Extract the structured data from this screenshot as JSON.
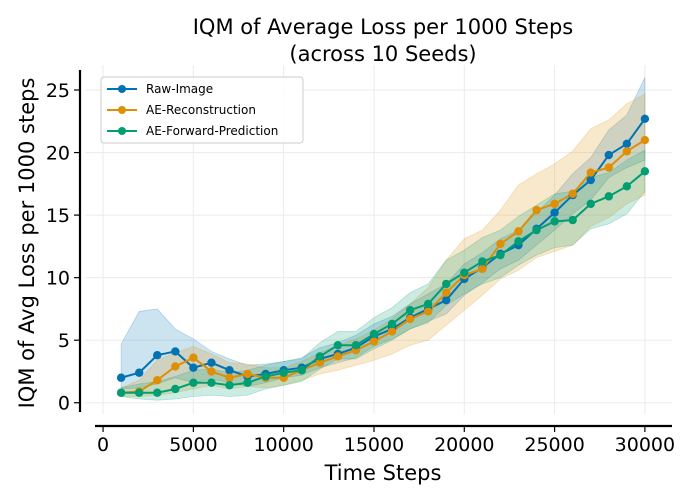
{
  "chart_data": {
    "type": "line",
    "title": "IQM of Average Loss per 1000 Steps",
    "subtitle": "(across 10 Seeds)",
    "xlabel": "Time Steps",
    "ylabel": "IQM of Avg Loss per 1000 steps",
    "xlim": [
      -1000,
      31500
    ],
    "ylim": [
      -0.9,
      27
    ],
    "x_ticks": [
      0,
      5000,
      10000,
      15000,
      20000,
      25000,
      30000
    ],
    "x_tick_labels": [
      "0",
      "5000",
      "10000",
      "15000",
      "20000",
      "25000",
      "30000"
    ],
    "y_ticks": [
      0,
      5,
      10,
      15,
      20,
      25
    ],
    "y_tick_labels": [
      "0",
      "5",
      "10",
      "15",
      "20",
      "25"
    ],
    "grid": true,
    "legend_position": "top-left",
    "x": [
      1000,
      2000,
      3000,
      4000,
      5000,
      6000,
      7000,
      8000,
      9000,
      10000,
      11000,
      12000,
      13000,
      14000,
      15000,
      16000,
      17000,
      18000,
      19000,
      20000,
      21000,
      22000,
      23000,
      24000,
      25000,
      26000,
      27000,
      28000,
      29000,
      30000
    ],
    "series": [
      {
        "name": "Raw-Image",
        "color": "#0173b2",
        "values": [
          2.0,
          2.4,
          3.8,
          4.1,
          2.8,
          3.2,
          2.6,
          2.1,
          2.3,
          2.6,
          2.8,
          3.5,
          3.9,
          4.4,
          5.3,
          5.9,
          6.8,
          7.5,
          8.2,
          9.9,
          10.8,
          11.9,
          12.6,
          13.9,
          15.2,
          16.6,
          17.8,
          19.8,
          20.7,
          22.7
        ],
        "band_lower": [
          1.1,
          1.2,
          1.5,
          2.0,
          1.6,
          1.9,
          1.6,
          1.3,
          1.6,
          2.0,
          2.2,
          2.8,
          3.2,
          3.6,
          4.5,
          5.1,
          5.9,
          6.5,
          7.1,
          8.6,
          9.6,
          10.7,
          11.4,
          12.6,
          13.8,
          15.1,
          16.2,
          18.0,
          18.8,
          19.4
        ],
        "band_upper": [
          4.7,
          7.3,
          7.5,
          5.9,
          5.1,
          4.1,
          3.5,
          3.0,
          3.1,
          3.3,
          3.6,
          4.4,
          4.8,
          5.4,
          6.3,
          6.9,
          7.9,
          8.7,
          9.5,
          11.1,
          12.0,
          13.1,
          13.8,
          15.2,
          16.6,
          18.3,
          19.6,
          21.8,
          23.0,
          26.0
        ]
      },
      {
        "name": "AE-Reconstruction",
        "color": "#de8f05",
        "values": [
          0.8,
          0.9,
          1.8,
          2.9,
          3.6,
          2.5,
          2.0,
          2.3,
          2.0,
          2.0,
          2.6,
          3.2,
          3.7,
          4.2,
          4.9,
          5.7,
          6.7,
          7.3,
          8.8,
          10.2,
          10.7,
          12.7,
          13.7,
          15.4,
          15.9,
          16.7,
          18.4,
          18.8,
          20.1,
          21.0
        ],
        "band_lower": [
          0.5,
          0.5,
          0.6,
          0.8,
          1.1,
          1.4,
          1.1,
          1.3,
          1.2,
          1.4,
          1.8,
          2.3,
          2.6,
          3.0,
          3.4,
          3.9,
          4.6,
          5.0,
          6.2,
          7.4,
          8.6,
          9.9,
          10.6,
          11.6,
          12.1,
          12.6,
          14.1,
          14.8,
          15.9,
          16.6
        ],
        "band_upper": [
          1.2,
          1.8,
          3.4,
          4.0,
          4.5,
          3.9,
          3.2,
          3.1,
          2.8,
          2.8,
          3.3,
          4.0,
          4.6,
          5.1,
          5.8,
          6.7,
          7.9,
          9.2,
          11.4,
          13.1,
          13.8,
          15.4,
          17.4,
          18.3,
          19.1,
          20.1,
          21.9,
          22.6,
          23.9,
          24.7
        ]
      },
      {
        "name": "AE-Forward-Prediction",
        "color": "#029e73",
        "values": [
          0.8,
          0.8,
          0.8,
          1.1,
          1.6,
          1.6,
          1.4,
          1.6,
          2.1,
          2.4,
          2.6,
          3.7,
          4.6,
          4.6,
          5.5,
          6.3,
          7.4,
          7.9,
          9.5,
          10.4,
          11.3,
          11.8,
          12.9,
          13.8,
          14.5,
          14.6,
          15.9,
          16.5,
          17.3,
          18.5
        ],
        "band_lower": [
          0.5,
          0.3,
          0.2,
          0.3,
          0.5,
          0.6,
          0.5,
          0.6,
          1.1,
          1.4,
          1.7,
          2.7,
          3.5,
          3.5,
          4.3,
          5.0,
          5.9,
          6.4,
          7.8,
          8.7,
          9.5,
          10.0,
          11.0,
          11.8,
          12.4,
          12.6,
          13.9,
          14.3,
          15.1,
          16.9
        ],
        "band_upper": [
          1.2,
          1.5,
          1.7,
          2.1,
          2.6,
          2.7,
          2.4,
          2.6,
          3.0,
          3.3,
          3.5,
          4.8,
          5.7,
          5.7,
          6.8,
          7.6,
          8.8,
          9.5,
          11.4,
          12.2,
          13.2,
          13.8,
          14.9,
          15.8,
          16.7,
          16.9,
          18.0,
          18.4,
          19.4,
          20.2
        ]
      }
    ]
  }
}
